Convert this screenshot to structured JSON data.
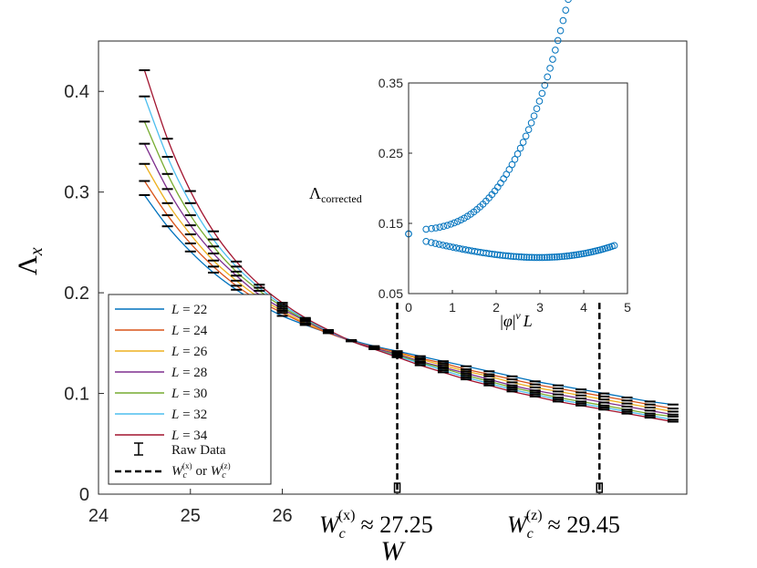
{
  "chart_data": {
    "main": {
      "type": "line",
      "xlabel": "W",
      "ylabel": "Λ",
      "ylabel_sub": "x",
      "xlim": [
        24,
        30.4
      ],
      "ylim": [
        0,
        0.45
      ],
      "xticks": [
        "24",
        "25",
        "26"
      ],
      "yticks": [
        "0",
        "0.1",
        "0.2",
        "0.3",
        "0.4"
      ],
      "x": [
        24.5,
        24.75,
        25.0,
        25.25,
        25.5,
        25.75,
        26.0,
        26.25,
        26.5,
        26.75,
        27.0,
        27.25,
        27.5,
        27.75,
        28.0,
        28.25,
        28.5,
        28.75,
        29.0,
        29.25,
        29.5,
        29.75,
        30.0,
        30.25
      ],
      "series": [
        {
          "name": "L = 22",
          "color": "#0072BD",
          "values": [
            0.297,
            0.266,
            0.241,
            0.22,
            0.203,
            0.189,
            0.177,
            0.168,
            0.16,
            0.153,
            0.147,
            0.142,
            0.137,
            0.132,
            0.127,
            0.122,
            0.117,
            0.112,
            0.108,
            0.104,
            0.1,
            0.096,
            0.092,
            0.089
          ]
        },
        {
          "name": "L = 24",
          "color": "#D95319",
          "values": [
            0.311,
            0.277,
            0.249,
            0.226,
            0.207,
            0.192,
            0.18,
            0.169,
            0.16,
            0.152,
            0.146,
            0.141,
            0.135,
            0.13,
            0.124,
            0.119,
            0.114,
            0.109,
            0.105,
            0.101,
            0.097,
            0.093,
            0.089,
            0.085
          ]
        },
        {
          "name": "L = 26",
          "color": "#EDB120",
          "values": [
            0.328,
            0.289,
            0.258,
            0.232,
            0.212,
            0.195,
            0.182,
            0.17,
            0.161,
            0.152,
            0.145,
            0.14,
            0.134,
            0.128,
            0.122,
            0.117,
            0.111,
            0.106,
            0.102,
            0.098,
            0.094,
            0.09,
            0.086,
            0.082
          ]
        },
        {
          "name": "L = 28",
          "color": "#7E2F8E",
          "values": [
            0.348,
            0.303,
            0.267,
            0.239,
            0.217,
            0.198,
            0.184,
            0.172,
            0.161,
            0.152,
            0.145,
            0.139,
            0.132,
            0.126,
            0.12,
            0.114,
            0.108,
            0.103,
            0.099,
            0.095,
            0.091,
            0.087,
            0.083,
            0.079
          ]
        },
        {
          "name": "L = 30",
          "color": "#77AC30",
          "values": [
            0.37,
            0.318,
            0.277,
            0.246,
            0.221,
            0.202,
            0.186,
            0.173,
            0.162,
            0.152,
            0.144,
            0.138,
            0.131,
            0.125,
            0.118,
            0.112,
            0.106,
            0.101,
            0.096,
            0.092,
            0.088,
            0.084,
            0.08,
            0.077
          ]
        },
        {
          "name": "L = 32",
          "color": "#4DBEEE",
          "values": [
            0.395,
            0.335,
            0.289,
            0.253,
            0.226,
            0.205,
            0.188,
            0.174,
            0.162,
            0.152,
            0.144,
            0.137,
            0.13,
            0.123,
            0.116,
            0.11,
            0.104,
            0.099,
            0.094,
            0.09,
            0.086,
            0.082,
            0.078,
            0.074
          ]
        },
        {
          "name": "L = 34",
          "color": "#A2142F",
          "values": [
            0.421,
            0.353,
            0.301,
            0.261,
            0.231,
            0.208,
            0.19,
            0.175,
            0.163,
            0.152,
            0.144,
            0.136,
            0.128,
            0.121,
            0.114,
            0.108,
            0.102,
            0.097,
            0.092,
            0.088,
            0.084,
            0.08,
            0.076,
            0.072
          ]
        }
      ],
      "legend": {
        "raw_label": "Raw Data",
        "critical_label": "W_c^(x) or W_c^(z)",
        "placement": "bottom-left"
      },
      "critical_lines": [
        {
          "x": 27.25,
          "label": "W_c^(x) ≈ 27.25",
          "sup": "(x)",
          "value": "≈ 27.25"
        },
        {
          "x": 29.45,
          "label": "W_c^(z) ≈ 29.45",
          "sup": "(z)",
          "value": "≈ 29.45"
        }
      ]
    },
    "inset": {
      "type": "scatter",
      "xlabel": "|φ|^ν L",
      "ylabel": "Λ_corrected",
      "ylabel_main": "Λ",
      "ylabel_sub": "corrected",
      "xlim": [
        0,
        5
      ],
      "ylim": [
        0.05,
        0.35
      ],
      "xticks": [
        "0",
        "1",
        "2",
        "3",
        "4",
        "5"
      ],
      "yticks": [
        "0.05",
        "0.15",
        "0.25",
        "0.35"
      ],
      "color": "#0072BD",
      "upper_branch": {
        "a": 0.14,
        "b": 0.0031,
        "c": 0.00655,
        "x_min": 0.4,
        "x_max": 4.9
      },
      "lower_branch": {
        "a": 0.13,
        "b": -0.0144,
        "c": 0.00054,
        "x_min": 0.4,
        "x_max": 4.7
      },
      "critical_point": {
        "x": 0.0,
        "y": 0.135
      }
    }
  }
}
